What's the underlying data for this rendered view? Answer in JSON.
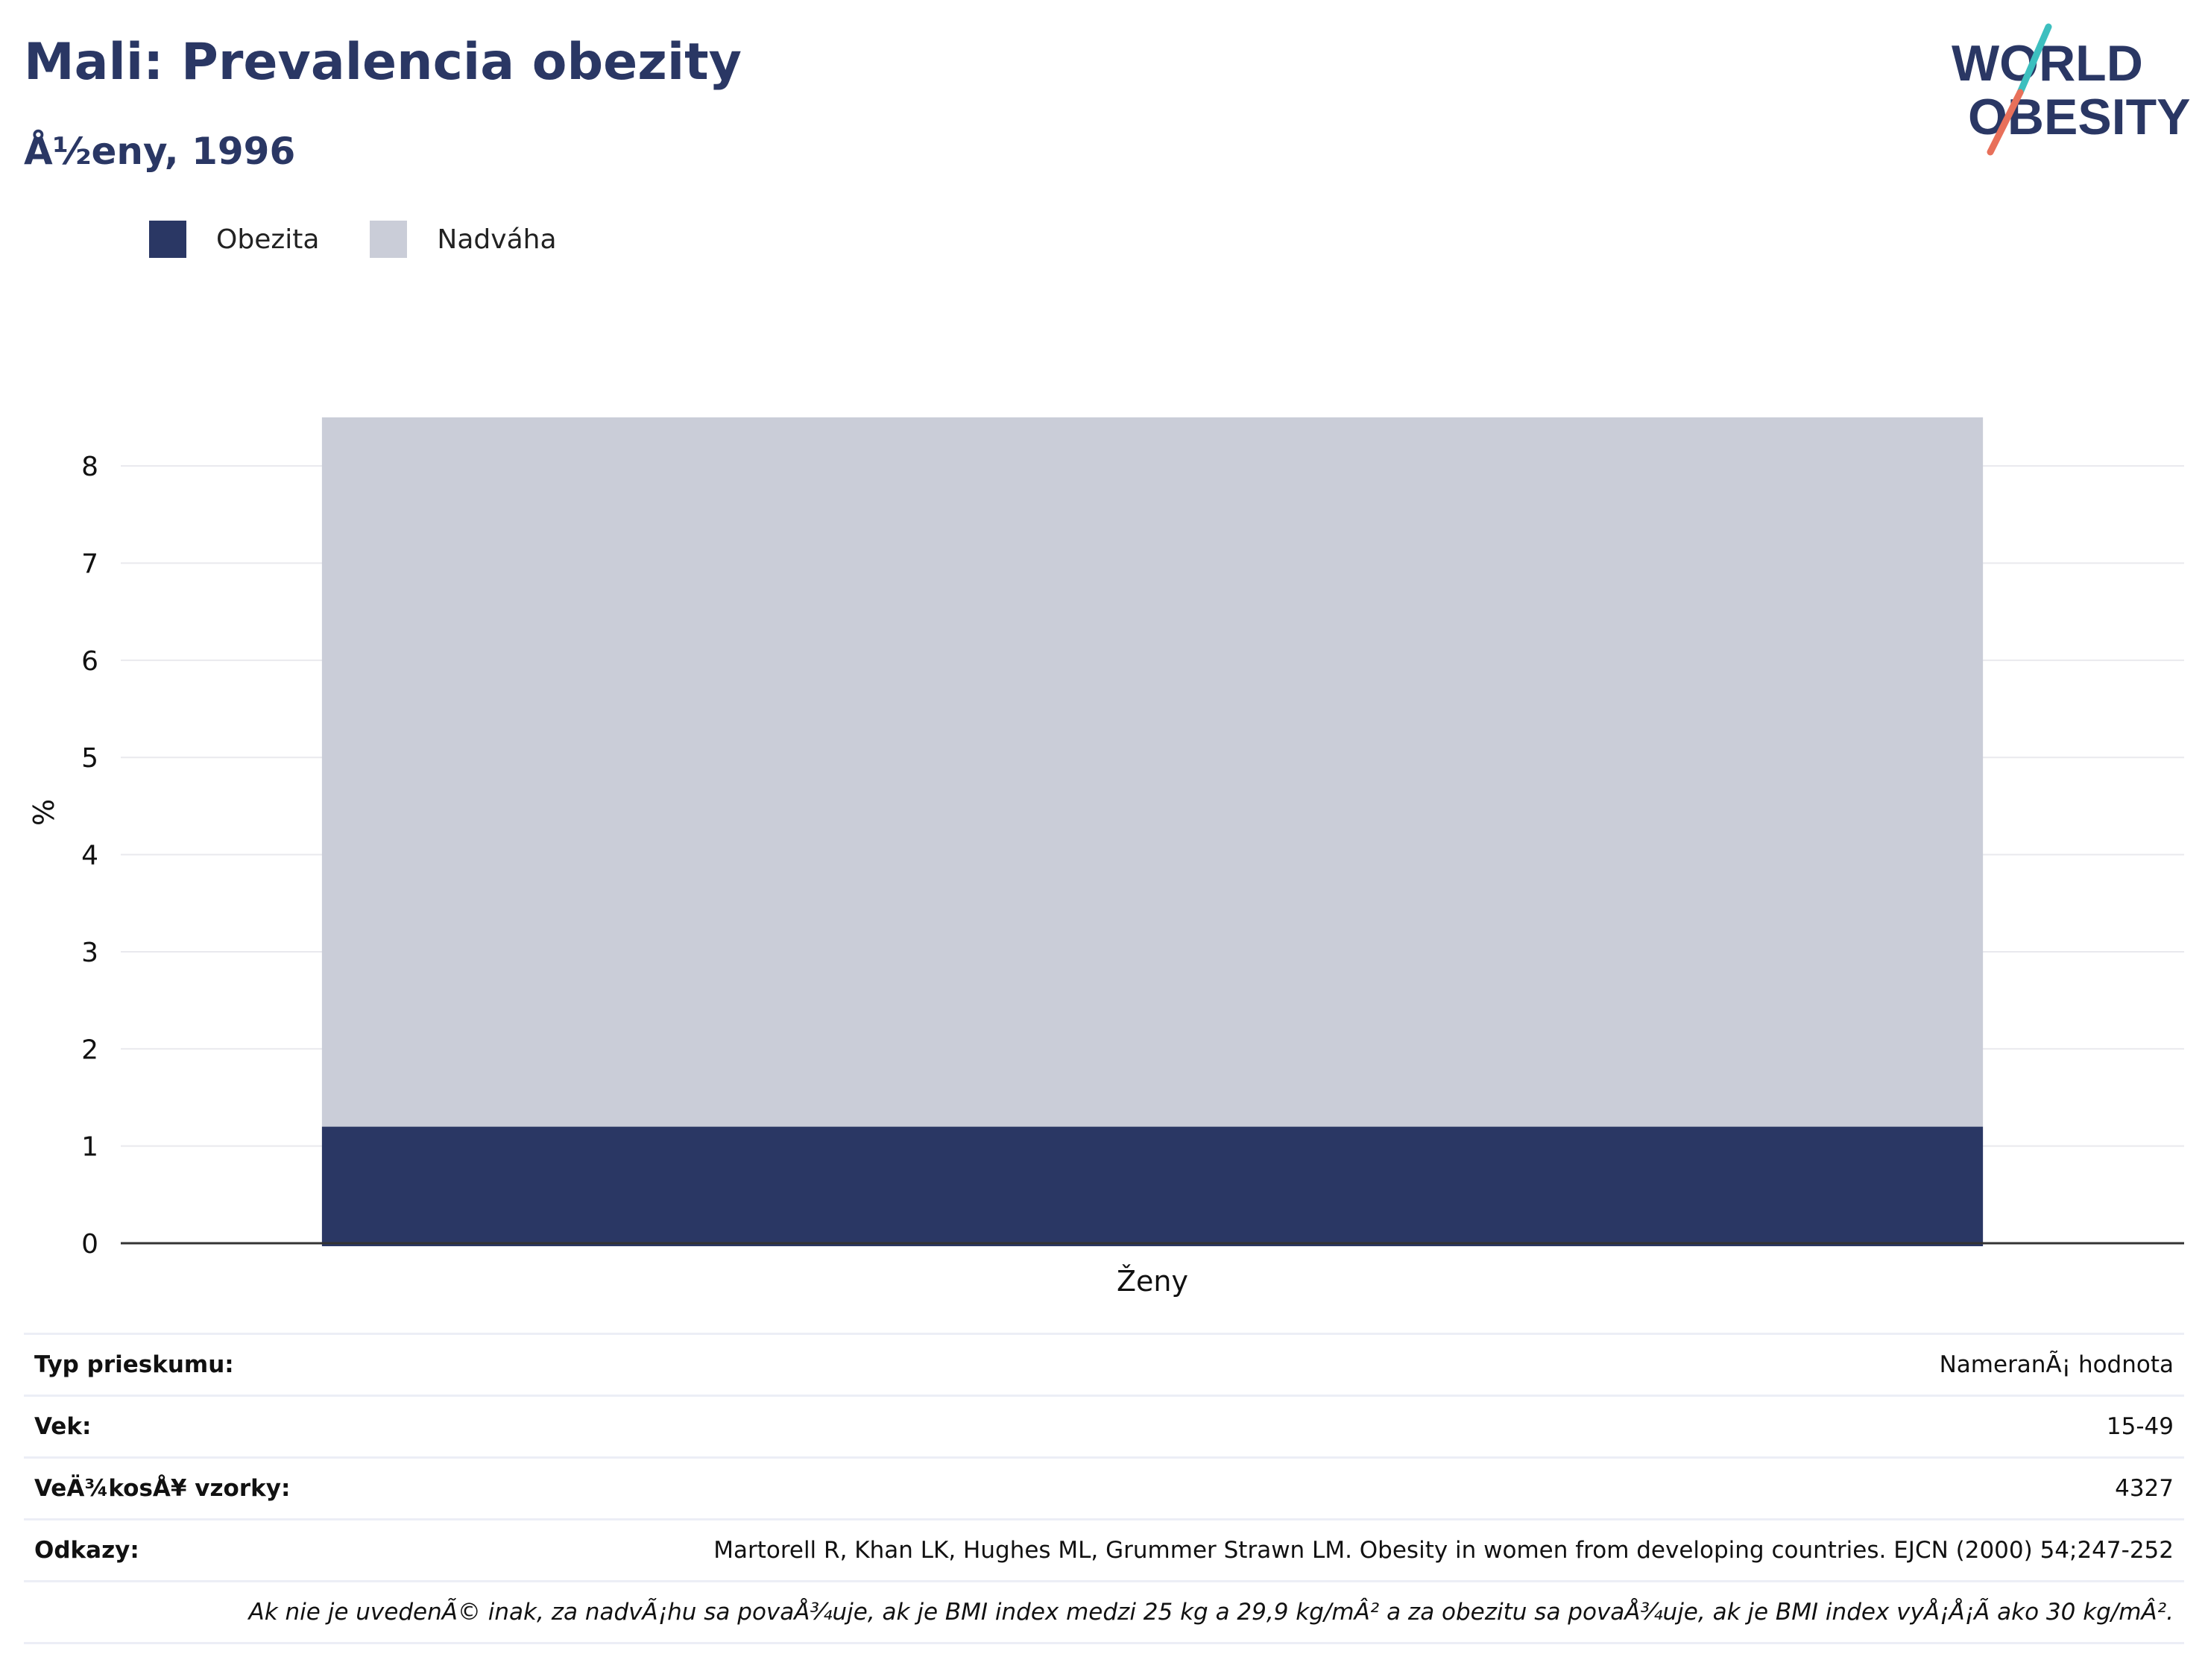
{
  "header": {
    "title": "Mali: Prevalencia obezity",
    "subtitle": "Å½eny, 1996"
  },
  "logo": {
    "line1": "WORLD",
    "line2": "OBESITY",
    "colors": {
      "text": "#2a3764",
      "slash_top": "#3dbfbf",
      "slash_bottom": "#e8705a"
    }
  },
  "legend": [
    {
      "label": "Obezita",
      "color": "#2a3764"
    },
    {
      "label": "Nadváha",
      "color": "#cacdd8"
    }
  ],
  "chart_data": {
    "type": "bar",
    "stacked": true,
    "categories": [
      "Ženy"
    ],
    "series": [
      {
        "name": "Obezita",
        "values": [
          1.2
        ],
        "color": "#2a3764"
      },
      {
        "name": "Nadváha",
        "values": [
          7.3
        ],
        "color": "#cacdd8"
      }
    ],
    "ylabel": "%",
    "ylim": [
      0,
      8.5
    ],
    "yticks": [
      0,
      1,
      2,
      3,
      4,
      5,
      6,
      7,
      8
    ],
    "grid": true
  },
  "info": {
    "rows": [
      {
        "key": "Typ prieskumu:",
        "value": "NameranÃ¡ hodnota"
      },
      {
        "key": "Vek:",
        "value": "15-49"
      },
      {
        "key": "VeÄ¾kosÅ¥ vzorky:",
        "value": "4327"
      },
      {
        "key": "Odkazy:",
        "value": "Martorell R, Khan LK, Hughes ML, Grummer Strawn LM. Obesity in women from developing countries. EJCN (2000) 54;247-252"
      }
    ],
    "footnote": "Ak nie je uvedenÃ© inak, za nadvÃ¡hu sa povaÅ¾uje, ak je BMI index medzi 25 kg a 29,9 kg/mÂ² a za obezitu sa povaÅ¾uje, ak je BMI index vyÅ¡Å¡Ã ako 30 kg/mÂ²."
  }
}
